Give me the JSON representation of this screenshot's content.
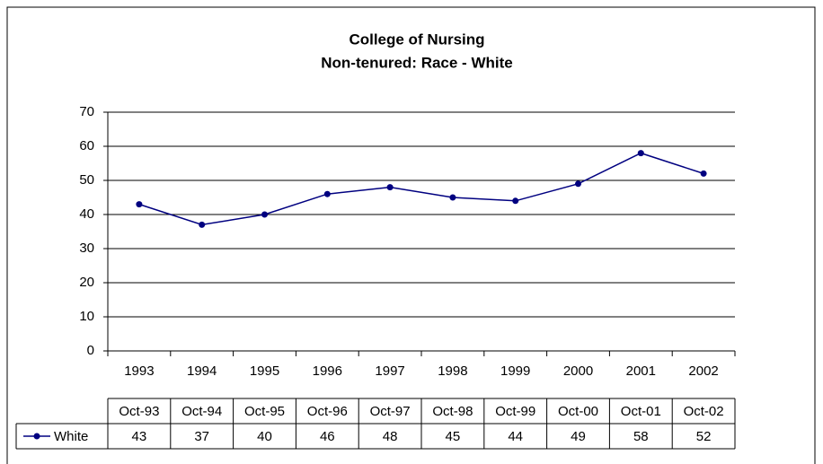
{
  "chart_data": {
    "type": "line",
    "title": "College of Nursing",
    "subtitle": "Non-tenured: Race - White",
    "categories": [
      "1993",
      "1994",
      "1995",
      "1996",
      "1997",
      "1998",
      "1999",
      "2000",
      "2001",
      "2002"
    ],
    "table_headers": [
      "Oct-93",
      "Oct-94",
      "Oct-95",
      "Oct-96",
      "Oct-97",
      "Oct-98",
      "Oct-99",
      "Oct-00",
      "Oct-01",
      "Oct-02"
    ],
    "series": [
      {
        "name": "White",
        "color": "#000080",
        "values": [
          43,
          37,
          40,
          46,
          48,
          45,
          44,
          49,
          58,
          52
        ]
      }
    ],
    "ylim": [
      0,
      70
    ],
    "yticks": [
      0,
      10,
      20,
      30,
      40,
      50,
      60,
      70
    ],
    "grid": true
  }
}
